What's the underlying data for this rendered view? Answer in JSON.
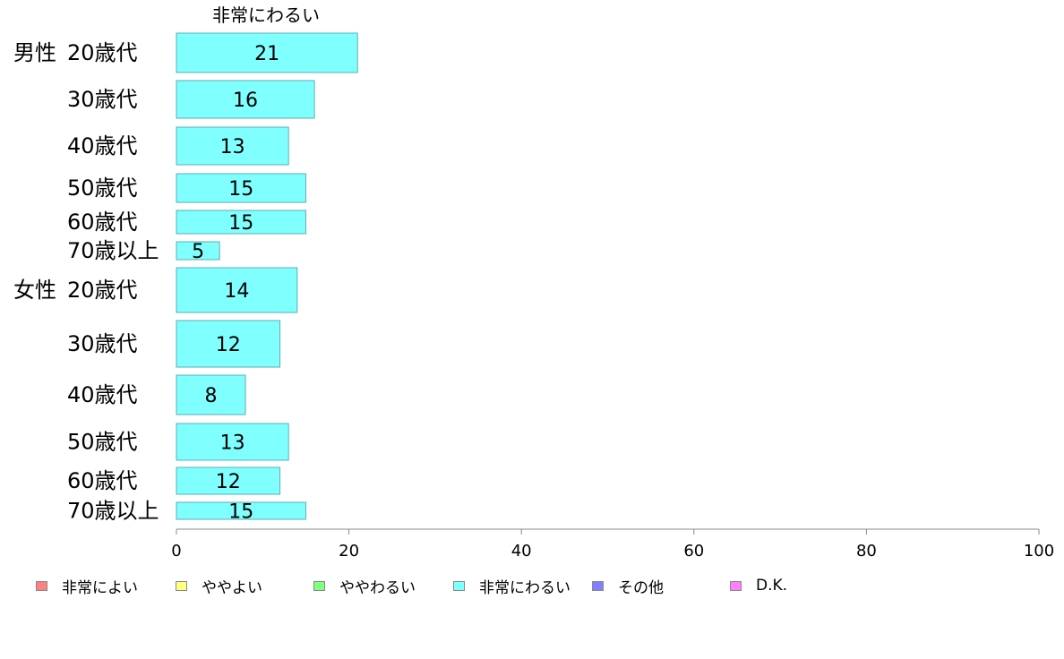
{
  "chart_data": {
    "type": "bar",
    "orientation": "horizontal",
    "column_header": "非常にわるい",
    "groups": [
      {
        "label": "男性",
        "categories": [
          "20歳代",
          "30歳代",
          "40歳代",
          "50歳代",
          "60歳代",
          "70歳以上"
        ]
      },
      {
        "label": "女性",
        "categories": [
          "20歳代",
          "30歳代",
          "40歳代",
          "50歳代",
          "60歳代",
          "70歳以上"
        ]
      }
    ],
    "series": [
      {
        "name": "非常にわるい",
        "color": "#80FFFF",
        "values": [
          21,
          16,
          13,
          15,
          15,
          5,
          14,
          12,
          8,
          13,
          12,
          15
        ]
      }
    ],
    "xlim": [
      0,
      100
    ],
    "x_ticks": [
      "0",
      "20",
      "40",
      "60",
      "80",
      "100"
    ],
    "grid": false,
    "legend": {
      "position": "bottom",
      "items": [
        {
          "label": "非常によい",
          "color": "#FF8080"
        },
        {
          "label": "ややよい",
          "color": "#FFFF80"
        },
        {
          "label": "ややわるい",
          "color": "#80FF80"
        },
        {
          "label": "非常にわるい",
          "color": "#80FFFF"
        },
        {
          "label": "その他",
          "color": "#8080FF"
        },
        {
          "label": "D.K.",
          "color": "#FF80FF"
        }
      ]
    }
  }
}
